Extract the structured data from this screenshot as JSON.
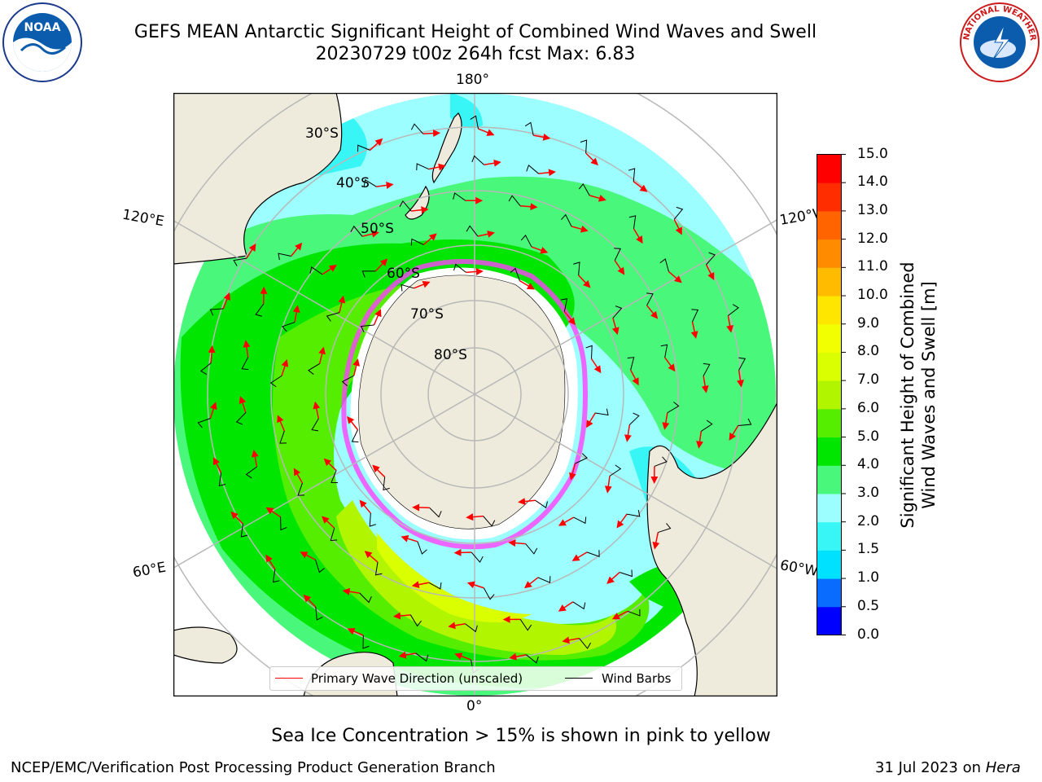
{
  "header": {
    "title_line1": "GEFS MEAN Antarctic Significant Height of Combined Wind Waves and Swell",
    "title_line2": "20230729 t00z 264h fcst   Max: 6.83",
    "left_logo_text": "NOAA",
    "right_logo_text": "NATIONAL WEATHER SERVICE"
  },
  "map": {
    "projection": "south-polar-stereographic",
    "land_color": "#efebdc",
    "ice_color": "#ffffff",
    "coastline_color": "#000000",
    "grid_color": "#b8b8b8",
    "longitude_labels": [
      {
        "text": "180°",
        "name": "lon-label-180"
      },
      {
        "text": "120°E",
        "name": "lon-label-120e"
      },
      {
        "text": "120°W",
        "name": "lon-label-120w"
      },
      {
        "text": "60°E",
        "name": "lon-label-60e"
      },
      {
        "text": "60°W",
        "name": "lon-label-60w"
      },
      {
        "text": "0°",
        "name": "lon-label-0"
      }
    ],
    "latitude_labels": [
      "30°S",
      "40°S",
      "50°S",
      "60°S",
      "70°S",
      "80°S"
    ]
  },
  "legend": {
    "primary_wave_direction": "Primary Wave Direction (unscaled)",
    "wind_barbs": "Wind Barbs",
    "wave_color": "#ff0000",
    "barb_color": "#000000"
  },
  "colorbar": {
    "title_line1": "Significant Height of Combined",
    "title_line2": "Wind Waves and Swell [m]",
    "ticks": [
      "0.0",
      "0.5",
      "1.0",
      "1.5",
      "2.0",
      "3.0",
      "4.0",
      "5.0",
      "6.0",
      "7.0",
      "8.0",
      "9.0",
      "10.0",
      "11.0",
      "12.0",
      "13.0",
      "14.0",
      "15.0"
    ],
    "colors": [
      "#0000ff",
      "#0a6cff",
      "#00e1ff",
      "#39f6f6",
      "#9cfefe",
      "#49f77a",
      "#00e600",
      "#55ee00",
      "#b2f500",
      "#d9ff00",
      "#f2ff00",
      "#ffe600",
      "#ffbb00",
      "#ff8c00",
      "#ff6400",
      "#ff2d00",
      "#ff0000"
    ]
  },
  "footer": {
    "ice_note": "Sea Ice Concentration > 15% is shown in pink to yellow",
    "left": "NCEP/EMC/Verification Post Processing Product Generation Branch",
    "date": "31 Jul 2023 on ",
    "machine": "Hera"
  }
}
